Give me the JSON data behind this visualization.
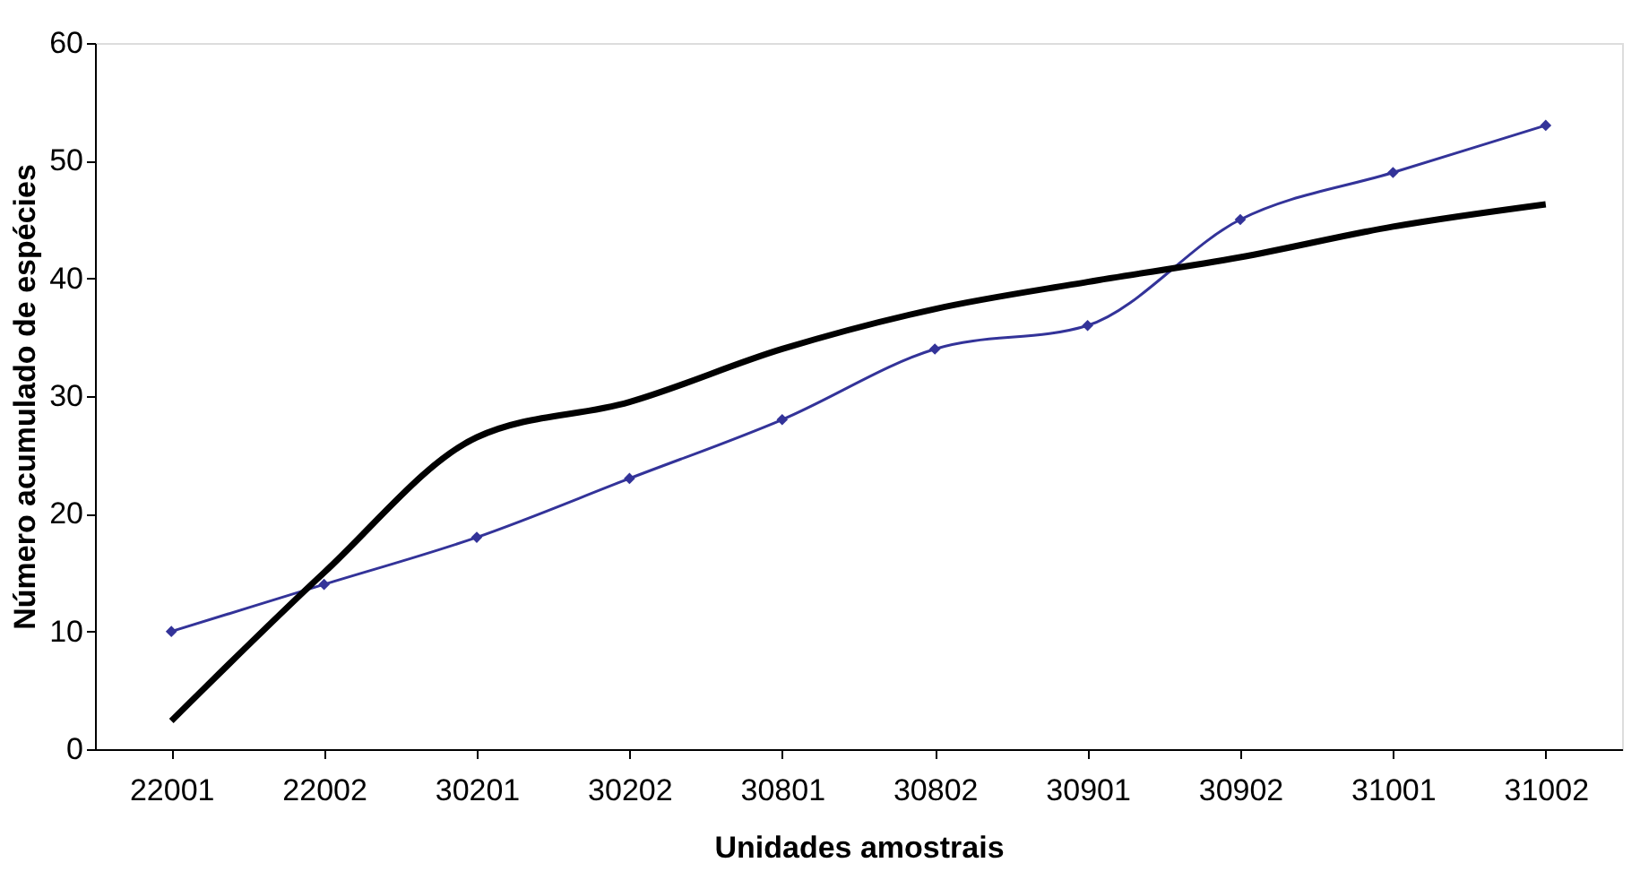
{
  "chart_data": {
    "type": "line",
    "xlabel": "Unidades amostrais",
    "ylabel": "Número acumulado de espécies",
    "categories": [
      "22001",
      "22002",
      "30201",
      "30202",
      "30801",
      "30802",
      "30901",
      "30902",
      "31001",
      "31002"
    ],
    "series": [
      {
        "color": "#333399",
        "marker": "diamond",
        "values": [
          10,
          14,
          18,
          23,
          28,
          34,
          36,
          45,
          49,
          53
        ]
      },
      {
        "color": "#000000",
        "marker": "none",
        "values": [
          2.4,
          15,
          26.5,
          29.5,
          34,
          37.4,
          39.7,
          41.8,
          44.4,
          46.3
        ]
      }
    ],
    "ylim": [
      0,
      60
    ],
    "yticks": [
      0,
      10,
      20,
      30,
      40,
      50,
      60
    ],
    "grid": false
  }
}
